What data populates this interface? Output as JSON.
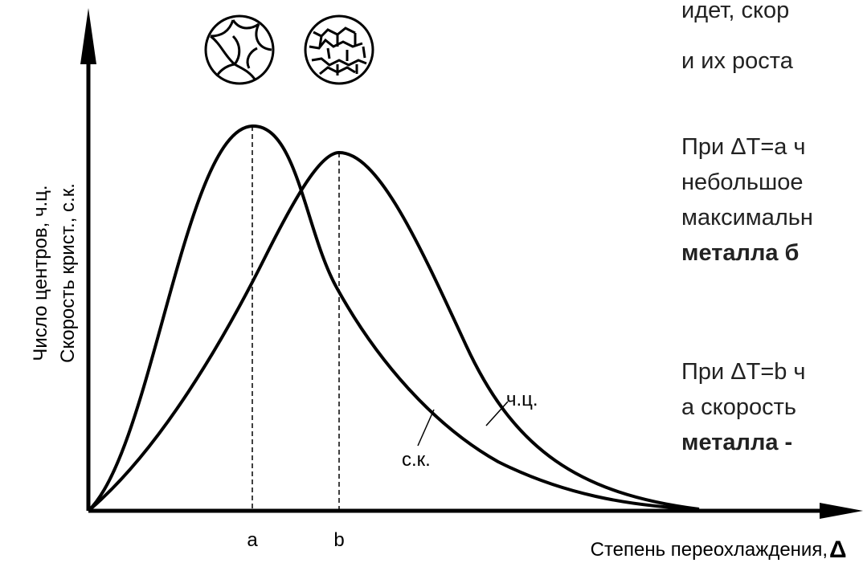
{
  "diagram": {
    "y_axis_label": [
      "Число центров, ч.ц.",
      "Скорость крист., с.к."
    ],
    "x_axis_label": "Степень переохлаждения,",
    "x_axis_symbol": "Δ",
    "point_labels": [
      "a",
      "b"
    ],
    "curve_labels": [
      "ч.ц.",
      "с.к."
    ]
  },
  "text_lines": [
    {
      "text": "идет, скор",
      "bold": false
    },
    {
      "text": "и их роста",
      "bold": false
    },
    {
      "text": "При ΔT=a ч",
      "bold": false
    },
    {
      "text": "небольшое",
      "bold": false
    },
    {
      "text": "максимальн",
      "bold": false
    },
    {
      "text": "металла б",
      "bold": true
    },
    {
      "text": "При ΔT=b ч",
      "bold": false
    },
    {
      "text": "а скорость",
      "bold": false
    },
    {
      "text": "металла -",
      "bold": true
    }
  ]
}
